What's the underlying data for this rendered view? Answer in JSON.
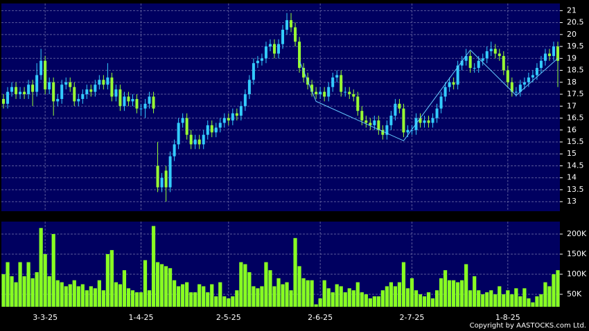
{
  "chart_data": {
    "type": "candlestick",
    "categories": [
      null,
      null,
      null,
      null,
      null,
      null,
      null,
      null,
      null,
      null,
      "3-3-25",
      null,
      null,
      null,
      null,
      null,
      null,
      null,
      null,
      null,
      null,
      null,
      null,
      null,
      null,
      null,
      null,
      null,
      null,
      null,
      null,
      null,
      null,
      "1-4-25",
      null,
      null,
      null,
      null,
      null,
      null,
      null,
      null,
      null,
      null,
      null,
      null,
      null,
      null,
      null,
      null,
      null,
      null,
      null,
      null,
      "2-5-25",
      null,
      null,
      null,
      null,
      null,
      null,
      null,
      null,
      null,
      null,
      null,
      null,
      null,
      null,
      null,
      null,
      null,
      null,
      null,
      null,
      null,
      "2-6-25",
      null,
      null,
      null,
      null,
      null,
      null,
      null,
      null,
      null,
      null,
      null,
      null,
      null,
      null,
      null,
      null,
      null,
      null,
      null,
      null,
      null,
      "2-7-25",
      null,
      null,
      null,
      null,
      null,
      null,
      null,
      null,
      null,
      null,
      null,
      null,
      null,
      null,
      null,
      null,
      null,
      null,
      null,
      null,
      null,
      null,
      "1-8-25",
      null,
      null,
      null,
      null,
      null,
      null,
      null,
      null,
      null,
      null,
      null,
      null
    ],
    "open": [
      17.3,
      17.1,
      17.6,
      17.8,
      17.5,
      17.6,
      17.5,
      17.9,
      17.6,
      18.3,
      18.9,
      17.7,
      18.0,
      17.2,
      17.3,
      17.9,
      18.0,
      17.8,
      17.2,
      17.3,
      17.5,
      17.7,
      17.6,
      17.9,
      18.1,
      17.9,
      18.2,
      17.4,
      17.7,
      17.0,
      17.4,
      17.2,
      17.3,
      16.9,
      16.9,
      17.1,
      17.4,
      14.5,
      13.6,
      14.3,
      13.6,
      14.9,
      15.4,
      16.3,
      16.5,
      15.8,
      15.4,
      15.6,
      15.4,
      15.8,
      16.2,
      15.9,
      16.1,
      16.3,
      16.5,
      16.4,
      16.7,
      16.6,
      17.0,
      17.5,
      18.1,
      18.8,
      18.9,
      19.0,
      19.5,
      19.6,
      19.2,
      19.6,
      20.2,
      20.6,
      20.3,
      19.7,
      18.6,
      18.2,
      17.9,
      17.6,
      17.5,
      17.6,
      17.4,
      17.8,
      18.2,
      18.3,
      17.6,
      17.6,
      17.5,
      17.4,
      16.8,
      16.4,
      16.3,
      16.2,
      16.4,
      16.0,
      15.8,
      16.2,
      16.6,
      17.1,
      16.9,
      15.9,
      16.0,
      16.0,
      16.5,
      16.3,
      16.4,
      16.3,
      16.5,
      16.9,
      17.4,
      17.8,
      18.0,
      17.9,
      18.7,
      18.9,
      19.1,
      18.6,
      18.6,
      18.9,
      19.0,
      19.3,
      19.4,
      19.2,
      19.1,
      18.5,
      18.0,
      17.6,
      17.6,
      17.9,
      18.0,
      18.2,
      18.3,
      18.6,
      18.9,
      19.2,
      19.1,
      19.5
    ],
    "high": [
      17.5,
      17.8,
      18.0,
      18.0,
      17.8,
      17.8,
      18.1,
      18.1,
      18.8,
      19.4,
      19.1,
      18.2,
      18.2,
      17.5,
      18.1,
      18.2,
      18.2,
      18.0,
      17.5,
      17.7,
      17.9,
      17.9,
      18.1,
      18.3,
      18.3,
      18.8,
      18.4,
      17.9,
      17.9,
      17.6,
      17.6,
      17.5,
      17.5,
      17.1,
      17.3,
      17.6,
      17.6,
      15.5,
      14.2,
      14.5,
      15.1,
      15.6,
      16.5,
      16.7,
      16.7,
      16.0,
      15.8,
      15.8,
      16.0,
      16.4,
      16.4,
      16.3,
      16.5,
      16.7,
      16.7,
      16.9,
      16.9,
      17.2,
      17.7,
      18.3,
      19.0,
      19.1,
      19.2,
      19.7,
      19.8,
      19.8,
      19.8,
      20.4,
      20.9,
      20.9,
      20.5,
      19.9,
      18.8,
      18.4,
      18.1,
      17.8,
      17.8,
      17.8,
      18.0,
      18.4,
      18.5,
      18.5,
      17.8,
      17.8,
      17.7,
      17.6,
      17.0,
      16.6,
      16.5,
      16.6,
      16.6,
      16.2,
      16.4,
      16.8,
      17.3,
      17.3,
      17.1,
      16.2,
      16.2,
      16.7,
      16.7,
      16.6,
      16.6,
      16.7,
      17.1,
      17.6,
      18.0,
      18.2,
      18.2,
      18.9,
      19.1,
      19.4,
      19.3,
      18.8,
      19.1,
      19.2,
      19.5,
      19.7,
      19.6,
      19.4,
      19.3,
      18.7,
      18.2,
      17.8,
      18.1,
      18.2,
      18.4,
      18.5,
      18.8,
      19.1,
      19.4,
      19.4,
      19.7,
      19.7
    ],
    "low": [
      16.9,
      16.9,
      17.4,
      17.3,
      17.3,
      17.3,
      17.3,
      17.0,
      17.4,
      18.1,
      17.5,
      17.5,
      16.6,
      17.0,
      17.1,
      17.7,
      17.6,
      17.0,
      17.0,
      17.1,
      17.3,
      17.4,
      17.4,
      17.7,
      17.7,
      17.7,
      17.2,
      17.2,
      16.8,
      16.8,
      17.0,
      17.0,
      16.7,
      16.6,
      16.5,
      16.9,
      16.7,
      13.4,
      13.4,
      13.0,
      13.4,
      14.7,
      15.2,
      16.1,
      15.6,
      15.2,
      15.2,
      15.2,
      15.2,
      15.6,
      15.7,
      15.7,
      15.9,
      16.1,
      16.2,
      16.2,
      16.4,
      16.4,
      16.8,
      17.3,
      17.9,
      18.6,
      18.7,
      18.8,
      19.3,
      19.0,
      19.0,
      19.4,
      20.0,
      20.1,
      19.5,
      18.4,
      18.0,
      17.7,
      17.4,
      17.3,
      17.3,
      17.2,
      17.2,
      17.6,
      18.0,
      17.4,
      17.4,
      17.3,
      17.2,
      16.6,
      16.2,
      16.1,
      16.0,
      16.0,
      15.8,
      15.6,
      15.6,
      16.0,
      16.4,
      16.7,
      15.7,
      15.7,
      15.8,
      15.8,
      16.1,
      16.1,
      16.1,
      16.1,
      16.3,
      16.7,
      17.2,
      17.6,
      17.7,
      17.7,
      18.5,
      18.7,
      18.4,
      18.4,
      18.4,
      18.7,
      18.8,
      19.1,
      19.0,
      18.9,
      18.3,
      17.8,
      17.4,
      17.4,
      17.4,
      17.7,
      17.8,
      18.0,
      18.1,
      18.4,
      18.7,
      18.9,
      18.9,
      17.8
    ],
    "close": [
      17.1,
      17.6,
      17.8,
      17.5,
      17.6,
      17.5,
      17.9,
      17.6,
      18.3,
      18.9,
      17.7,
      18.0,
      17.2,
      17.3,
      17.9,
      18.0,
      17.8,
      17.2,
      17.3,
      17.5,
      17.7,
      17.6,
      17.9,
      18.1,
      17.9,
      18.2,
      17.4,
      17.7,
      17.0,
      17.4,
      17.2,
      17.3,
      16.9,
      16.9,
      17.1,
      17.4,
      16.9,
      13.6,
      14.0,
      13.6,
      14.9,
      15.4,
      16.3,
      16.5,
      15.8,
      15.4,
      15.6,
      15.4,
      15.8,
      16.2,
      15.9,
      16.1,
      16.3,
      16.5,
      16.4,
      16.7,
      16.6,
      17.0,
      17.5,
      18.1,
      18.8,
      18.9,
      19.0,
      19.5,
      19.6,
      19.2,
      19.6,
      20.2,
      20.6,
      20.3,
      19.7,
      18.6,
      18.2,
      17.9,
      17.6,
      17.5,
      17.6,
      17.4,
      17.8,
      18.2,
      18.3,
      17.6,
      17.6,
      17.5,
      17.4,
      16.8,
      16.4,
      16.3,
      16.2,
      16.4,
      16.0,
      15.8,
      16.2,
      16.6,
      17.1,
      16.9,
      15.9,
      16.0,
      16.0,
      16.5,
      16.3,
      16.4,
      16.3,
      16.5,
      16.9,
      17.4,
      17.8,
      18.0,
      17.9,
      18.7,
      18.9,
      19.1,
      18.6,
      18.6,
      18.9,
      19.0,
      19.3,
      19.4,
      19.2,
      19.1,
      18.5,
      18.0,
      17.6,
      17.6,
      17.9,
      18.0,
      18.2,
      18.3,
      18.6,
      18.9,
      19.2,
      19.1,
      19.5,
      18.9
    ],
    "up_color": "#33ccff",
    "down_color": "#99ff33",
    "ylim": [
      12.6,
      21.3
    ],
    "yticks": [
      13,
      13.5,
      14,
      14.5,
      15,
      15.5,
      16,
      16.5,
      17,
      17.5,
      18,
      18.5,
      19,
      19.5,
      20,
      20.5,
      21
    ],
    "grid": true,
    "pattern_line": {
      "color": "#66ccff",
      "x": [
        71,
        75,
        96,
        112,
        123,
        133
      ],
      "values": [
        18.9,
        17.2,
        15.55,
        19.35,
        17.45,
        19.0
      ]
    },
    "volume": {
      "type": "bar",
      "color": "#88ff22",
      "values": [
        100000,
        130000,
        95000,
        80000,
        130000,
        95000,
        130000,
        90000,
        105000,
        215000,
        150000,
        95000,
        200000,
        85000,
        80000,
        70000,
        75000,
        85000,
        70000,
        75000,
        60000,
        70000,
        65000,
        85000,
        60000,
        150000,
        160000,
        80000,
        75000,
        110000,
        65000,
        60000,
        55000,
        55000,
        135000,
        60000,
        220000,
        130000,
        125000,
        120000,
        115000,
        85000,
        70000,
        75000,
        80000,
        55000,
        55000,
        75000,
        70000,
        55000,
        75000,
        45000,
        80000,
        45000,
        40000,
        45000,
        60000,
        130000,
        125000,
        105000,
        70000,
        65000,
        70000,
        130000,
        110000,
        70000,
        90000,
        75000,
        80000,
        60000,
        190000,
        120000,
        90000,
        85000,
        85000,
        25000,
        40000,
        85000,
        65000,
        55000,
        75000,
        70000,
        55000,
        65000,
        60000,
        80000,
        55000,
        50000,
        40000,
        45000,
        45000,
        60000,
        70000,
        80000,
        70000,
        80000,
        130000,
        65000,
        90000,
        60000,
        50000,
        45000,
        55000,
        40000,
        60000,
        90000,
        110000,
        85000,
        85000,
        80000,
        85000,
        125000,
        60000,
        95000,
        60000,
        50000,
        55000,
        60000,
        50000,
        70000,
        50000,
        60000,
        50000,
        65000,
        45000,
        65000,
        40000,
        30000,
        45000,
        50000,
        80000,
        70000,
        100000,
        110000
      ],
      "ylim": [
        19000,
        231000
      ],
      "yticks": [
        {
          "value": 50000,
          "label": "50K"
        },
        {
          "value": 100000,
          "label": "100K"
        },
        {
          "value": 150000,
          "label": "150K"
        },
        {
          "value": 200000,
          "label": "200K"
        }
      ]
    }
  },
  "copyright": "Copyright by AASTOCKS.com Ltd."
}
